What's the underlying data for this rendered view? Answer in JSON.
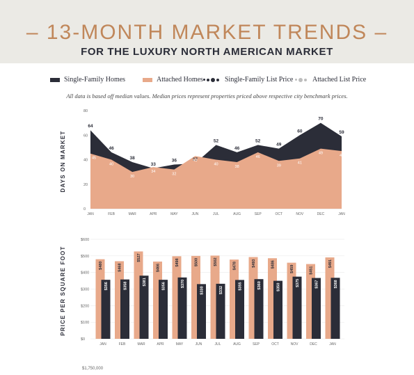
{
  "header": {
    "title": "– 13-MONTH MARKET TRENDS –",
    "subtitle": "FOR THE LUXURY NORTH AMERICAN MARKET"
  },
  "legend": {
    "single_family": "Single-Family Homes",
    "attached": "Attached Homes",
    "sf_list_price": "Single-Family List Price",
    "att_list_price": "Attached List Price"
  },
  "note": "All data is based off median values. Median prices represent properties priced above respective city benchmark prices.",
  "colors": {
    "single_family": "#2b2d38",
    "attached": "#e8a98a",
    "attached_list": "#bdbdbd",
    "title": "#c0875a"
  },
  "chart_data": [
    {
      "type": "area",
      "ylabel": "DAYS ON MARKET",
      "ylim": [
        0,
        80
      ],
      "yticks": [
        "0",
        "20",
        "40",
        "60",
        "80"
      ],
      "categories": [
        "JAN",
        "FEB",
        "MAR",
        "APR",
        "MAY",
        "JUN",
        "JUL",
        "AUG",
        "SEP",
        "OCT",
        "NOV",
        "DEC",
        "JAN"
      ],
      "series": [
        {
          "name": "Single-Family Homes",
          "values": [
            64,
            46,
            38,
            33,
            36,
            37,
            52,
            46,
            52,
            49,
            60,
            70,
            59
          ]
        },
        {
          "name": "Attached Homes",
          "values": [
            45,
            40,
            30,
            34,
            32,
            43,
            40,
            38,
            46,
            39,
            41,
            49,
            47
          ]
        }
      ]
    },
    {
      "type": "bar",
      "ylabel": "PRICE PER SQUARE FOOT",
      "ylim": [
        0,
        600
      ],
      "yticks": [
        "$0",
        "$100",
        "$200",
        "$300",
        "$400",
        "$500",
        "$600"
      ],
      "categories": [
        "JAN",
        "FEB",
        "MAR",
        "APR",
        "MAY",
        "JUN",
        "JUL",
        "AUG",
        "SEP",
        "OCT",
        "NOV",
        "DEC",
        "JAN"
      ],
      "series": [
        {
          "name": "Attached Homes",
          "values": [
            480,
            468,
            527,
            466,
            498,
            500,
            502,
            478,
            493,
            486,
            459,
            451,
            491
          ],
          "labels": [
            "$480",
            "$468",
            "$527",
            "$466",
            "$498",
            "$500",
            "$502",
            "$478",
            "$493",
            "$486",
            "$459",
            "$451",
            "$491"
          ]
        },
        {
          "name": "Single-Family Homes",
          "values": [
            356,
            358,
            381,
            356,
            370,
            330,
            332,
            355,
            360,
            350,
            375,
            367,
            368
          ],
          "labels": [
            "$356",
            "$358",
            "$381",
            "$356",
            "$370",
            "$330",
            "$332",
            "$355",
            "$360",
            "$350",
            "$375",
            "$367",
            "$368"
          ]
        }
      ]
    }
  ],
  "footer": {
    "next_axis_value": "$1,750,000"
  }
}
